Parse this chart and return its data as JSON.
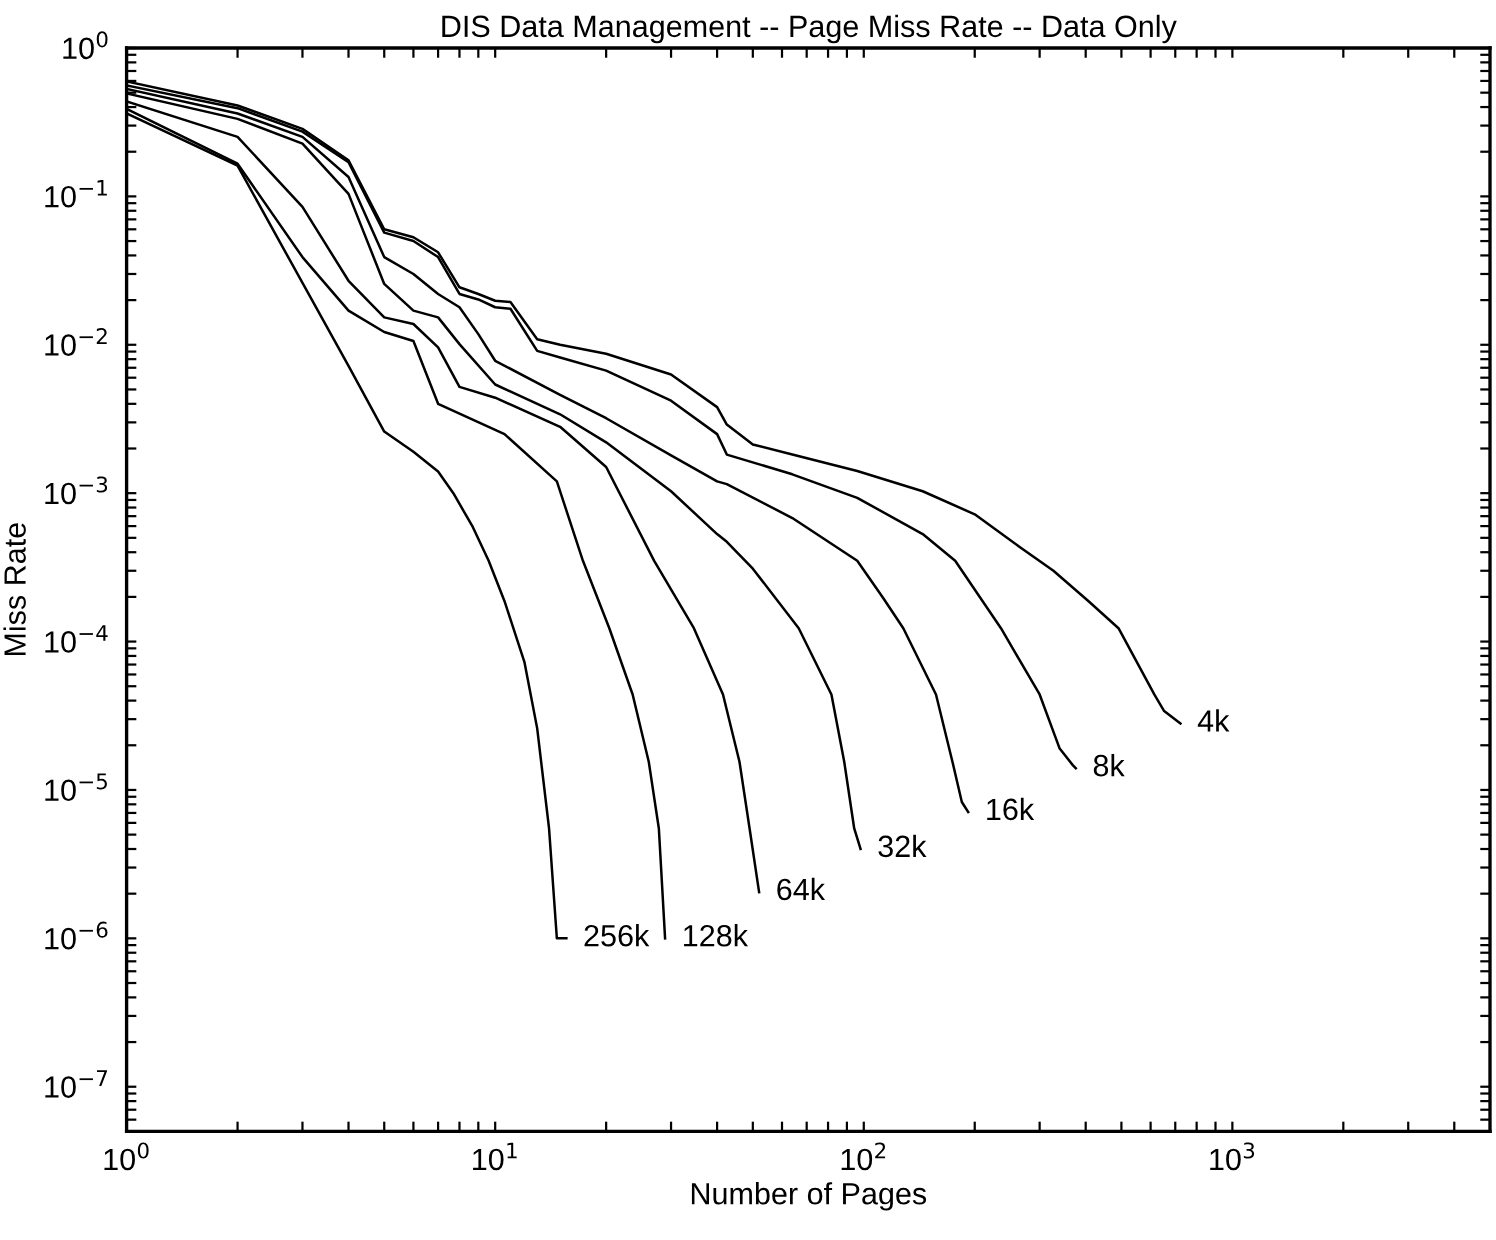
{
  "chart_data": {
    "type": "line",
    "title": "DIS Data Management -- Page Miss Rate -- Data Only",
    "xlabel": "Number of Pages",
    "ylabel": "Miss Rate",
    "log": "xy",
    "grid": false,
    "legend": false,
    "marker": "none",
    "line_style": "solid",
    "xlim": [
      1,
      5000
    ],
    "ylim": [
      5e-08,
      1
    ],
    "xticks": [
      {
        "value": 1,
        "label": "10$^{0}$"
      },
      {
        "value": 2,
        "label": null
      },
      {
        "value": 3,
        "label": null
      },
      {
        "value": 4,
        "label": null
      },
      {
        "value": 5,
        "label": null
      },
      {
        "value": 6,
        "label": null
      },
      {
        "value": 7,
        "label": null
      },
      {
        "value": 8,
        "label": null
      },
      {
        "value": 9,
        "label": null
      },
      {
        "value": 10,
        "label": "10$^{1}$"
      },
      {
        "value": 20,
        "label": null
      },
      {
        "value": 30,
        "label": null
      },
      {
        "value": 40,
        "label": null
      },
      {
        "value": 50,
        "label": null
      },
      {
        "value": 60,
        "label": null
      },
      {
        "value": 70,
        "label": null
      },
      {
        "value": 80,
        "label": null
      },
      {
        "value": 90,
        "label": null
      },
      {
        "value": 100,
        "label": "10$^{2}$"
      },
      {
        "value": 200,
        "label": null
      },
      {
        "value": 300,
        "label": null
      },
      {
        "value": 400,
        "label": null
      },
      {
        "value": 500,
        "label": null
      },
      {
        "value": 600,
        "label": null
      },
      {
        "value": 700,
        "label": null
      },
      {
        "value": 800,
        "label": null
      },
      {
        "value": 900,
        "label": null
      },
      {
        "value": 1000,
        "label": "10$^{3}$"
      },
      {
        "value": 2000,
        "label": null
      },
      {
        "value": 3000,
        "label": null
      },
      {
        "value": 4000,
        "label": null
      }
    ],
    "yticks": [
      {
        "value": 6e-08,
        "label": null
      },
      {
        "value": 7e-08,
        "label": null
      },
      {
        "value": 8e-08,
        "label": null
      },
      {
        "value": 9e-08,
        "label": null
      },
      {
        "value": 1e-07,
        "label": "10$^{−7}$"
      },
      {
        "value": 2e-07,
        "label": null
      },
      {
        "value": 3e-07,
        "label": null
      },
      {
        "value": 4e-07,
        "label": null
      },
      {
        "value": 5e-07,
        "label": null
      },
      {
        "value": 6e-07,
        "label": null
      },
      {
        "value": 7e-07,
        "label": null
      },
      {
        "value": 8e-07,
        "label": null
      },
      {
        "value": 9e-07,
        "label": null
      },
      {
        "value": 1e-06,
        "label": "10$^{−6}$"
      },
      {
        "value": 2e-06,
        "label": null
      },
      {
        "value": 3e-06,
        "label": null
      },
      {
        "value": 4e-06,
        "label": null
      },
      {
        "value": 5e-06,
        "label": null
      },
      {
        "value": 6e-06,
        "label": null
      },
      {
        "value": 7e-06,
        "label": null
      },
      {
        "value": 8e-06,
        "label": null
      },
      {
        "value": 9e-06,
        "label": null
      },
      {
        "value": 1e-05,
        "label": "10$^{−5}$"
      },
      {
        "value": 2e-05,
        "label": null
      },
      {
        "value": 3e-05,
        "label": null
      },
      {
        "value": 4e-05,
        "label": null
      },
      {
        "value": 5e-05,
        "label": null
      },
      {
        "value": 6e-05,
        "label": null
      },
      {
        "value": 7e-05,
        "label": null
      },
      {
        "value": 8e-05,
        "label": null
      },
      {
        "value": 9e-05,
        "label": null
      },
      {
        "value": 0.0001,
        "label": "10$^{−4}$"
      },
      {
        "value": 0.0002,
        "label": null
      },
      {
        "value": 0.0003,
        "label": null
      },
      {
        "value": 0.0004,
        "label": null
      },
      {
        "value": 0.0005,
        "label": null
      },
      {
        "value": 0.0006,
        "label": null
      },
      {
        "value": 0.0007,
        "label": null
      },
      {
        "value": 0.0008,
        "label": null
      },
      {
        "value": 0.0009,
        "label": null
      },
      {
        "value": 0.001,
        "label": "10$^{−3}$"
      },
      {
        "value": 0.002,
        "label": null
      },
      {
        "value": 0.003,
        "label": null
      },
      {
        "value": 0.004,
        "label": null
      },
      {
        "value": 0.005,
        "label": null
      },
      {
        "value": 0.006,
        "label": null
      },
      {
        "value": 0.007,
        "label": null
      },
      {
        "value": 0.008,
        "label": null
      },
      {
        "value": 0.009,
        "label": null
      },
      {
        "value": 0.01,
        "label": "10$^{−2}$"
      },
      {
        "value": 0.02,
        "label": null
      },
      {
        "value": 0.03,
        "label": null
      },
      {
        "value": 0.04,
        "label": null
      },
      {
        "value": 0.05,
        "label": null
      },
      {
        "value": 0.06,
        "label": null
      },
      {
        "value": 0.07,
        "label": null
      },
      {
        "value": 0.08,
        "label": null
      },
      {
        "value": 0.09,
        "label": null
      },
      {
        "value": 0.1,
        "label": "10$^{−1}$"
      },
      {
        "value": 0.2,
        "label": null
      },
      {
        "value": 0.3,
        "label": null
      },
      {
        "value": 0.4,
        "label": null
      },
      {
        "value": 0.5,
        "label": null
      },
      {
        "value": 0.6,
        "label": null
      },
      {
        "value": 0.7,
        "label": null
      },
      {
        "value": 0.8,
        "label": null
      },
      {
        "value": 0.9,
        "label": null
      },
      {
        "value": 1,
        "label": "10$^{0}$"
      }
    ],
    "series": [
      {
        "name": "4k",
        "color": "#000000",
        "x": [
          1,
          2,
          3,
          4,
          5,
          6,
          7,
          8,
          9,
          10,
          11,
          13,
          15,
          20,
          30,
          40,
          42.5,
          50,
          64,
          96,
          144.5,
          200,
          266,
          327,
          408,
          491,
          614,
          653,
          723
        ],
        "values": [
          0.595,
          0.41,
          0.285,
          0.175,
          0.06,
          0.053,
          0.042,
          0.0244,
          0.022,
          0.0198,
          0.0194,
          0.0109,
          0.01,
          0.0087,
          0.0063,
          0.0038,
          0.0029,
          0.00213,
          0.00182,
          0.00141,
          0.00103,
          0.00072,
          0.00043,
          0.0003,
          0.000186,
          0.000123,
          4.4e-05,
          3.4e-05,
          2.8e-05
        ]
      },
      {
        "name": "8k",
        "color": "#000000",
        "x": [
          1,
          2,
          3,
          4,
          5,
          6,
          7,
          8,
          9,
          10,
          11,
          13,
          15,
          20,
          30,
          40,
          42.5,
          64,
          96,
          144.5,
          177,
          235.6,
          300,
          340,
          369,
          376
        ],
        "values": [
          0.56,
          0.393,
          0.273,
          0.17,
          0.057,
          0.05,
          0.039,
          0.022,
          0.0202,
          0.0179,
          0.0175,
          0.0091,
          0.0082,
          0.0067,
          0.0042,
          0.0025,
          0.00182,
          0.00134,
          0.00093,
          0.00053,
          0.00035,
          0.000123,
          4.4e-05,
          1.9e-05,
          1.47e-05,
          1.4e-05
        ]
      },
      {
        "name": "16k",
        "color": "#000000",
        "x": [
          1,
          2,
          3,
          4,
          5,
          6,
          7,
          8,
          9,
          10,
          15,
          20,
          30,
          40,
          42.5,
          64,
          96,
          113,
          128,
          157,
          174,
          184.5,
          192
        ],
        "values": [
          0.53,
          0.362,
          0.252,
          0.135,
          0.039,
          0.03,
          0.022,
          0.0179,
          0.0118,
          0.0078,
          0.0046,
          0.0032,
          0.0018,
          0.0012,
          0.00115,
          0.00068,
          0.00035,
          0.000196,
          0.000123,
          4.4e-05,
          1.55e-05,
          8.3e-06,
          7.1e-06
        ]
      },
      {
        "name": "32k",
        "color": "#000000",
        "x": [
          1,
          2,
          3,
          4,
          5,
          6,
          7,
          8,
          10,
          15,
          20,
          30,
          40,
          42.5,
          50,
          66.6,
          81.7,
          88.5,
          94.2,
          98
        ],
        "values": [
          0.494,
          0.333,
          0.227,
          0.104,
          0.0257,
          0.017,
          0.0153,
          0.0101,
          0.0054,
          0.0034,
          0.0022,
          0.00103,
          0.00053,
          0.00047,
          0.00031,
          0.000123,
          4.4e-05,
          1.55e-05,
          5.5e-06,
          4e-06
        ]
      },
      {
        "name": "64k",
        "color": "#000000",
        "x": [
          1,
          2,
          3,
          4,
          5,
          6,
          7,
          8,
          10,
          15,
          20,
          27,
          34.6,
          41.5,
          46,
          49,
          52
        ],
        "values": [
          0.436,
          0.252,
          0.085,
          0.027,
          0.0153,
          0.0138,
          0.0096,
          0.0052,
          0.0044,
          0.0028,
          0.0015,
          0.00035,
          0.000123,
          4.4e-05,
          1.55e-05,
          5.5e-06,
          2.05e-06
        ]
      },
      {
        "name": "128k",
        "color": "#000000",
        "x": [
          1,
          2,
          3,
          4,
          5,
          6,
          7,
          10.6,
          14.7,
          17.3,
          20.4,
          23.6,
          26.1,
          27.8,
          28.9
        ],
        "values": [
          0.389,
          0.166,
          0.039,
          0.017,
          0.0122,
          0.0106,
          0.004,
          0.0025,
          0.0012,
          0.00035,
          0.000123,
          4.4e-05,
          1.55e-05,
          5.5e-06,
          1e-06
        ]
      },
      {
        "name": "256k",
        "color": "#000000",
        "x": [
          1,
          2,
          4,
          5,
          6,
          7,
          7.7,
          8.7,
          9.6,
          10.6,
          12,
          13,
          14,
          14.7,
          15.6
        ],
        "values": [
          0.362,
          0.161,
          0.0072,
          0.0026,
          0.0019,
          0.0014,
          0.001,
          0.00059,
          0.00035,
          0.000187,
          7.3e-05,
          2.6e-05,
          5.5e-06,
          1e-06,
          1e-06
        ]
      }
    ]
  }
}
